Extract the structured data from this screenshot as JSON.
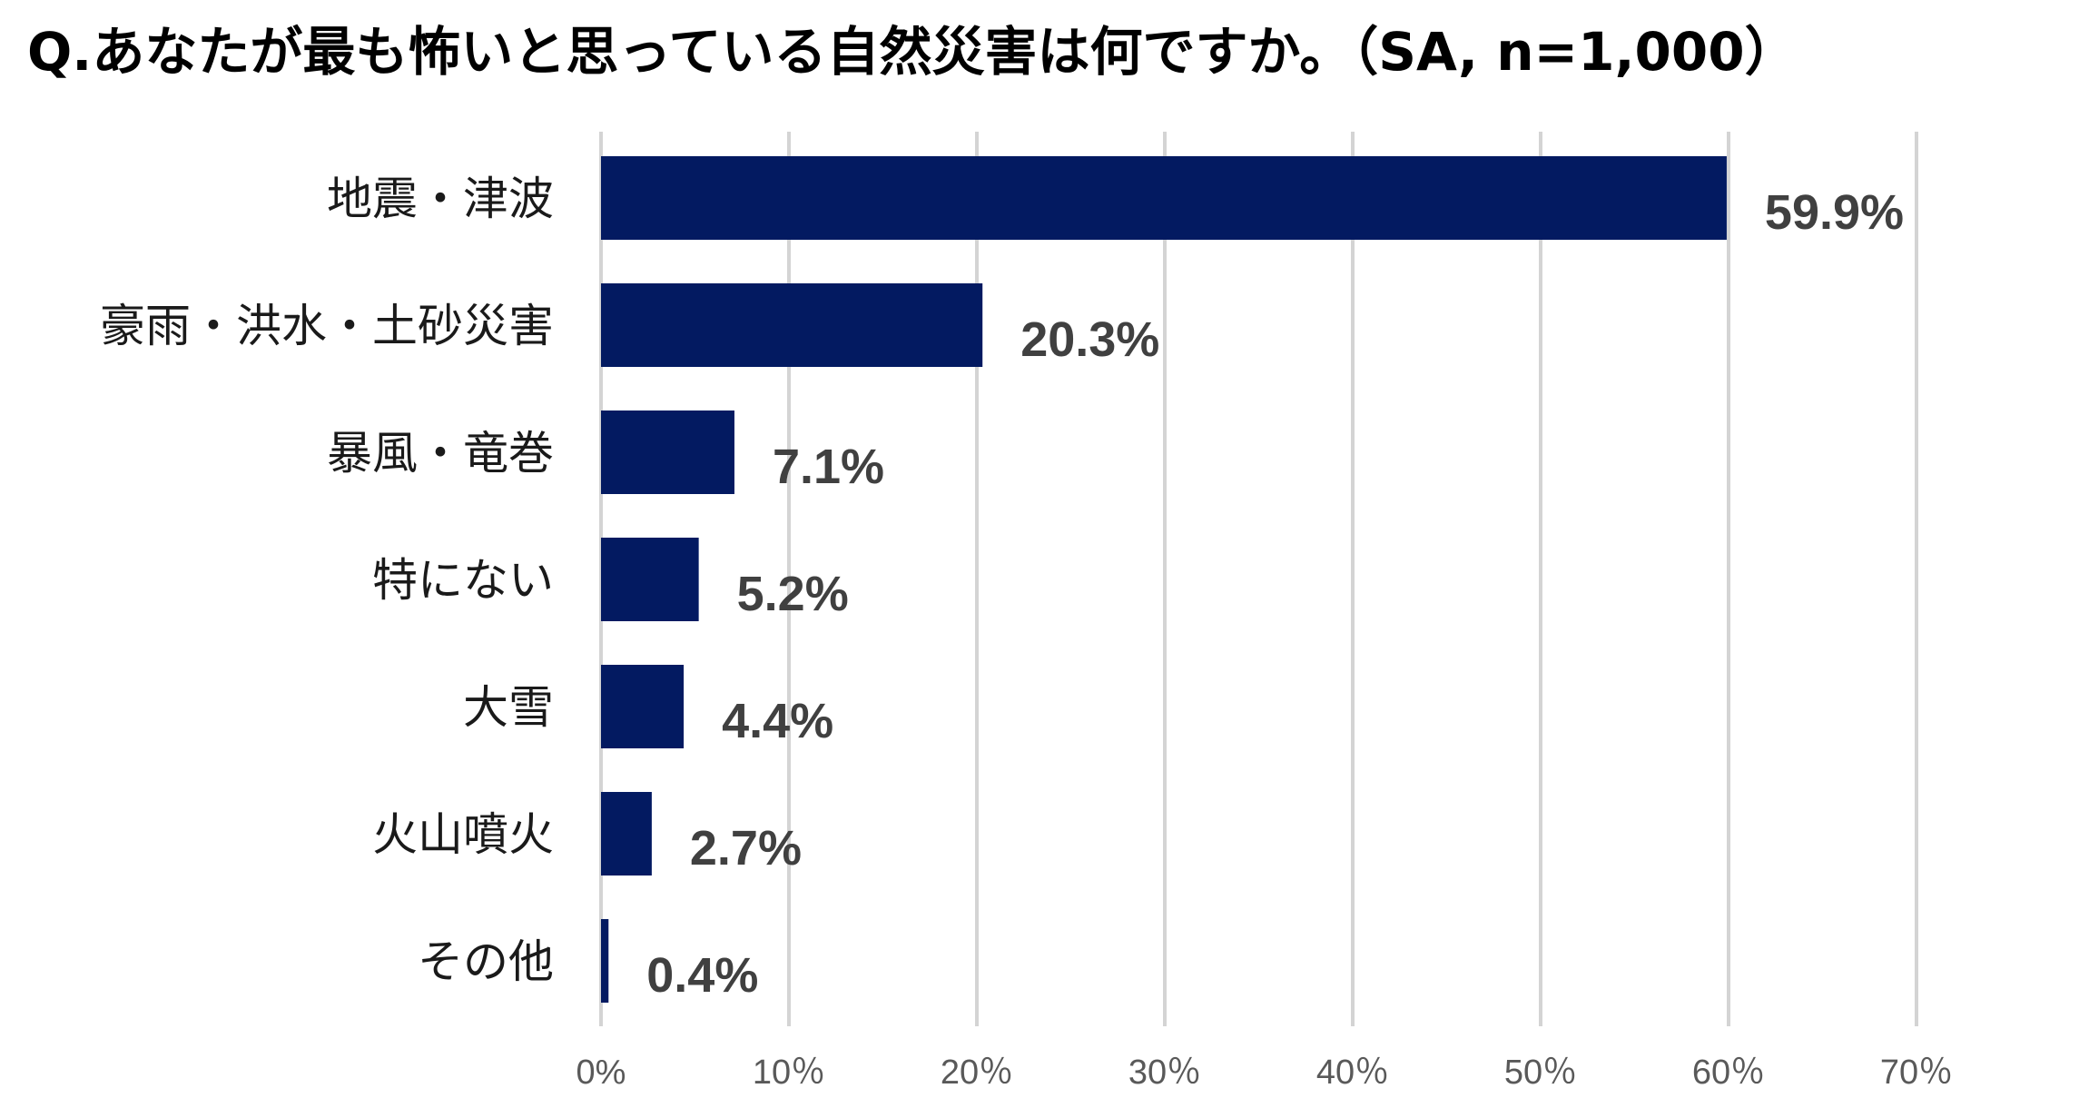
{
  "chart_data": {
    "type": "bar",
    "orientation": "horizontal",
    "title": "Q.あなたが最も怖いと思っている自然災害は何ですか。（SA, n=1,000）",
    "categories": [
      "地震・津波",
      "豪雨・洪水・土砂災害",
      "暴風・竜巻",
      "特にない",
      "大雪",
      "火山噴火",
      "その他"
    ],
    "values": [
      59.9,
      20.3,
      7.1,
      5.2,
      4.4,
      2.7,
      0.4
    ],
    "value_labels": [
      "59.9%",
      "20.3%",
      "7.1%",
      "5.2%",
      "4.4%",
      "2.7%",
      "0.4%"
    ],
    "xlim": [
      0,
      70
    ],
    "x_ticks": [
      0,
      10,
      20,
      30,
      40,
      50,
      60,
      70
    ],
    "x_tick_labels": [
      "0%",
      "10％",
      "20％",
      "30％",
      "40％",
      "50％",
      "60％",
      "70％"
    ],
    "grid": "vertical",
    "legend": "none",
    "bar_color": "#031a61"
  }
}
